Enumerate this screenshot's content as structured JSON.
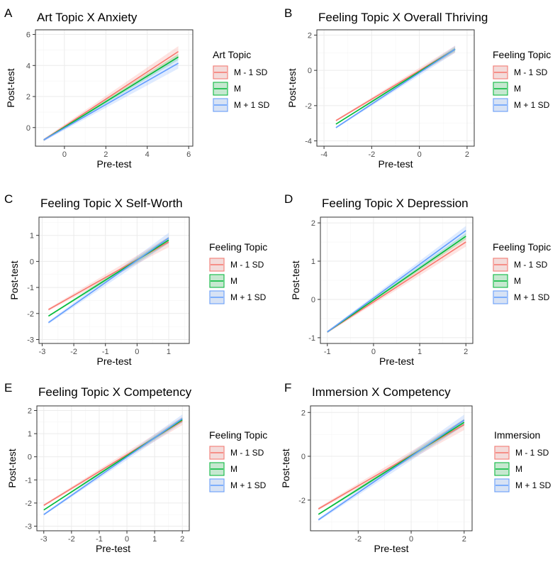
{
  "figure": {
    "colors": {
      "minus_sd": "#F8766D",
      "mean": "#00BA38",
      "plus_sd": "#619CFF",
      "grid_major": "#ebebeb",
      "grid_minor": "#f5f5f5",
      "border": "#333333"
    }
  },
  "chart_data": [
    {
      "type": "line",
      "letter": "A",
      "title": "Art Topic X Anxiety",
      "xlabel": "Pre-test",
      "ylabel": "Post-test",
      "xlim": [
        -1.4,
        6.2
      ],
      "ylim": [
        -1.2,
        6.3
      ],
      "xticks": [
        0,
        2,
        4,
        6
      ],
      "xtick_labels": [
        "0",
        "2",
        "4",
        "6"
      ],
      "yticks": [
        0,
        2,
        4,
        6
      ],
      "ytick_labels": [
        "0",
        "2",
        "4",
        "6"
      ],
      "legend_title": "Art Topic",
      "series": [
        {
          "name": "M - 1 SD",
          "x": [
            -1.0,
            5.5
          ],
          "y": [
            -0.8,
            4.9
          ],
          "ci": 0.35
        },
        {
          "name": "M",
          "x": [
            -1.0,
            5.5
          ],
          "y": [
            -0.8,
            4.55
          ],
          "ci": 0.2
        },
        {
          "name": "M + 1 SD",
          "x": [
            -1.0,
            5.5
          ],
          "y": [
            -0.8,
            4.15
          ],
          "ci": 0.35
        }
      ]
    },
    {
      "type": "line",
      "letter": "B",
      "title": "Feeling Topic X Overall Thriving",
      "xlabel": "Pre-test",
      "ylabel": "Post-test",
      "xlim": [
        -4.3,
        2.3
      ],
      "ylim": [
        -4.3,
        2.3
      ],
      "xticks": [
        -4,
        -2,
        0,
        2
      ],
      "xtick_labels": [
        "-4",
        "-2",
        "0",
        "2"
      ],
      "yticks": [
        -4,
        -2,
        0,
        2
      ],
      "ytick_labels": [
        "-4",
        "-2",
        "0",
        "2"
      ],
      "legend_title": "Feeling Topic",
      "series": [
        {
          "name": "M - 1 SD",
          "x": [
            -3.5,
            1.5
          ],
          "y": [
            -2.85,
            1.2
          ],
          "ci": 0.2
        },
        {
          "name": "M",
          "x": [
            -3.5,
            1.5
          ],
          "y": [
            -3.05,
            1.2
          ],
          "ci": 0.12
        },
        {
          "name": "M + 1 SD",
          "x": [
            -3.5,
            1.5
          ],
          "y": [
            -3.25,
            1.2
          ],
          "ci": 0.2
        }
      ]
    },
    {
      "type": "line",
      "letter": "C",
      "title": "Feeling Topic X Self-Worth",
      "xlabel": "Pre-test",
      "ylabel": "Post-test",
      "xlim": [
        -3.1,
        1.65
      ],
      "ylim": [
        -3.15,
        1.7
      ],
      "xticks": [
        -3,
        -2,
        -1,
        0,
        1
      ],
      "xtick_labels": [
        "-3",
        "-2",
        "-1",
        "0",
        "1"
      ],
      "yticks": [
        -3,
        -2,
        -1,
        0,
        1
      ],
      "ytick_labels": [
        "-3",
        "-2",
        "-1",
        "0",
        "1"
      ],
      "legend_title": "Feeling Topic",
      "series": [
        {
          "name": "M - 1 SD",
          "x": [
            -2.8,
            1.0
          ],
          "y": [
            -1.85,
            0.75
          ],
          "ci": 0.2
        },
        {
          "name": "M",
          "x": [
            -2.8,
            1.0
          ],
          "y": [
            -2.1,
            0.82
          ],
          "ci": 0.12
        },
        {
          "name": "M + 1 SD",
          "x": [
            -2.8,
            1.0
          ],
          "y": [
            -2.35,
            0.9
          ],
          "ci": 0.2
        }
      ]
    },
    {
      "type": "line",
      "letter": "D",
      "title": "Feeling Topic X Depression",
      "xlabel": "Pre-test",
      "ylabel": "Post-test",
      "xlim": [
        -1.15,
        2.15
      ],
      "ylim": [
        -1.15,
        2.15
      ],
      "xticks": [
        -1,
        0,
        1,
        2
      ],
      "xtick_labels": [
        "-1",
        "0",
        "1",
        "2"
      ],
      "yticks": [
        -1,
        0,
        1,
        2
      ],
      "ytick_labels": [
        "-1",
        "0",
        "1",
        "2"
      ],
      "legend_title": "Feeling Topic",
      "series": [
        {
          "name": "M - 1 SD",
          "x": [
            -1.0,
            2.0
          ],
          "y": [
            -0.85,
            1.5
          ],
          "ci": 0.12
        },
        {
          "name": "M",
          "x": [
            -1.0,
            2.0
          ],
          "y": [
            -0.85,
            1.65
          ],
          "ci": 0.08
        },
        {
          "name": "M + 1 SD",
          "x": [
            -1.0,
            2.0
          ],
          "y": [
            -0.85,
            1.8
          ],
          "ci": 0.12
        }
      ]
    },
    {
      "type": "line",
      "letter": "E",
      "title": "Feeling Topic X Competency",
      "xlabel": "Pre-test",
      "ylabel": "Post-test",
      "xlim": [
        -3.25,
        2.25
      ],
      "ylim": [
        -3.2,
        2.2
      ],
      "xticks": [
        -3,
        -2,
        -1,
        0,
        1,
        2
      ],
      "xtick_labels": [
        "-3",
        "-2",
        "-1",
        "0",
        "1",
        "2"
      ],
      "yticks": [
        -3,
        -2,
        -1,
        0,
        1,
        2
      ],
      "ytick_labels": [
        "-3",
        "-2",
        "-1",
        "0",
        "1",
        "2"
      ],
      "legend_title": "Feeling Topic",
      "series": [
        {
          "name": "M - 1 SD",
          "x": [
            -3.0,
            2.0
          ],
          "y": [
            -2.1,
            1.55
          ],
          "ci": 0.18
        },
        {
          "name": "M",
          "x": [
            -3.0,
            2.0
          ],
          "y": [
            -2.3,
            1.6
          ],
          "ci": 0.1
        },
        {
          "name": "M + 1 SD",
          "x": [
            -3.0,
            2.0
          ],
          "y": [
            -2.5,
            1.65
          ],
          "ci": 0.18
        }
      ]
    },
    {
      "type": "line",
      "letter": "F",
      "title": "Immersion X Competency",
      "xlabel": "Pre-test",
      "ylabel": "Post-test",
      "xlim": [
        -3.8,
        2.3
      ],
      "ylim": [
        -3.4,
        2.3
      ],
      "xticks": [
        -2,
        0,
        2
      ],
      "xtick_labels": [
        "-2",
        "0",
        "2"
      ],
      "yticks": [
        -2,
        0,
        2
      ],
      "ytick_labels": [
        "-2",
        "0",
        "2"
      ],
      "legend_title": "Immersion",
      "series": [
        {
          "name": "M - 1 SD",
          "x": [
            -3.5,
            2.0
          ],
          "y": [
            -2.4,
            1.45
          ],
          "ci": 0.25
        },
        {
          "name": "M",
          "x": [
            -3.5,
            2.0
          ],
          "y": [
            -2.65,
            1.55
          ],
          "ci": 0.15
        },
        {
          "name": "M + 1 SD",
          "x": [
            -3.5,
            2.0
          ],
          "y": [
            -2.9,
            1.65
          ],
          "ci": 0.25
        }
      ]
    }
  ]
}
